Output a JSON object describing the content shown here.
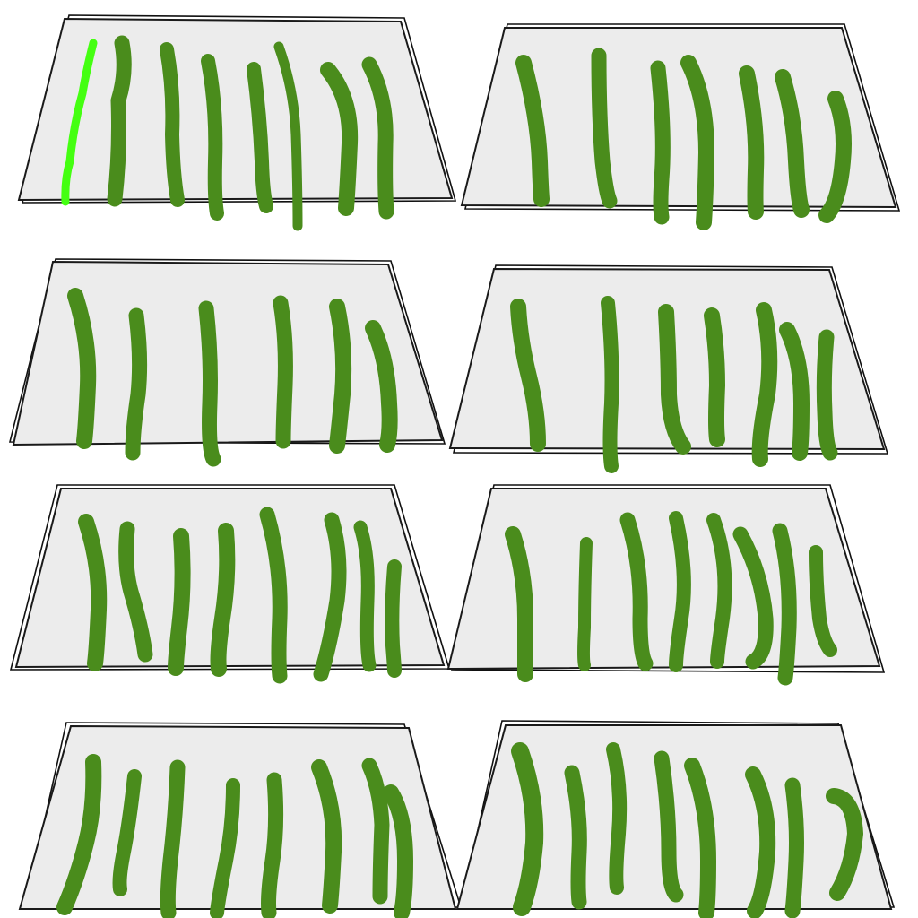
{
  "colors": {
    "background": "#ffffff",
    "panel_fill": "#ececec",
    "panel_border": "#1a1a1a",
    "stroke_green": "#4a8c1c",
    "stroke_highlight": "#44ff11"
  },
  "panels": [
    {
      "id": "panel-1",
      "stroke_count": 8,
      "highlighted_stroke_index": 0
    },
    {
      "id": "panel-2",
      "stroke_count": 7
    },
    {
      "id": "panel-3",
      "stroke_count": 6
    },
    {
      "id": "panel-4",
      "stroke_count": 7
    },
    {
      "id": "panel-5",
      "stroke_count": 8
    },
    {
      "id": "panel-6",
      "stroke_count": 8
    },
    {
      "id": "panel-7",
      "stroke_count": 8
    },
    {
      "id": "panel-8",
      "stroke_count": 8
    }
  ]
}
